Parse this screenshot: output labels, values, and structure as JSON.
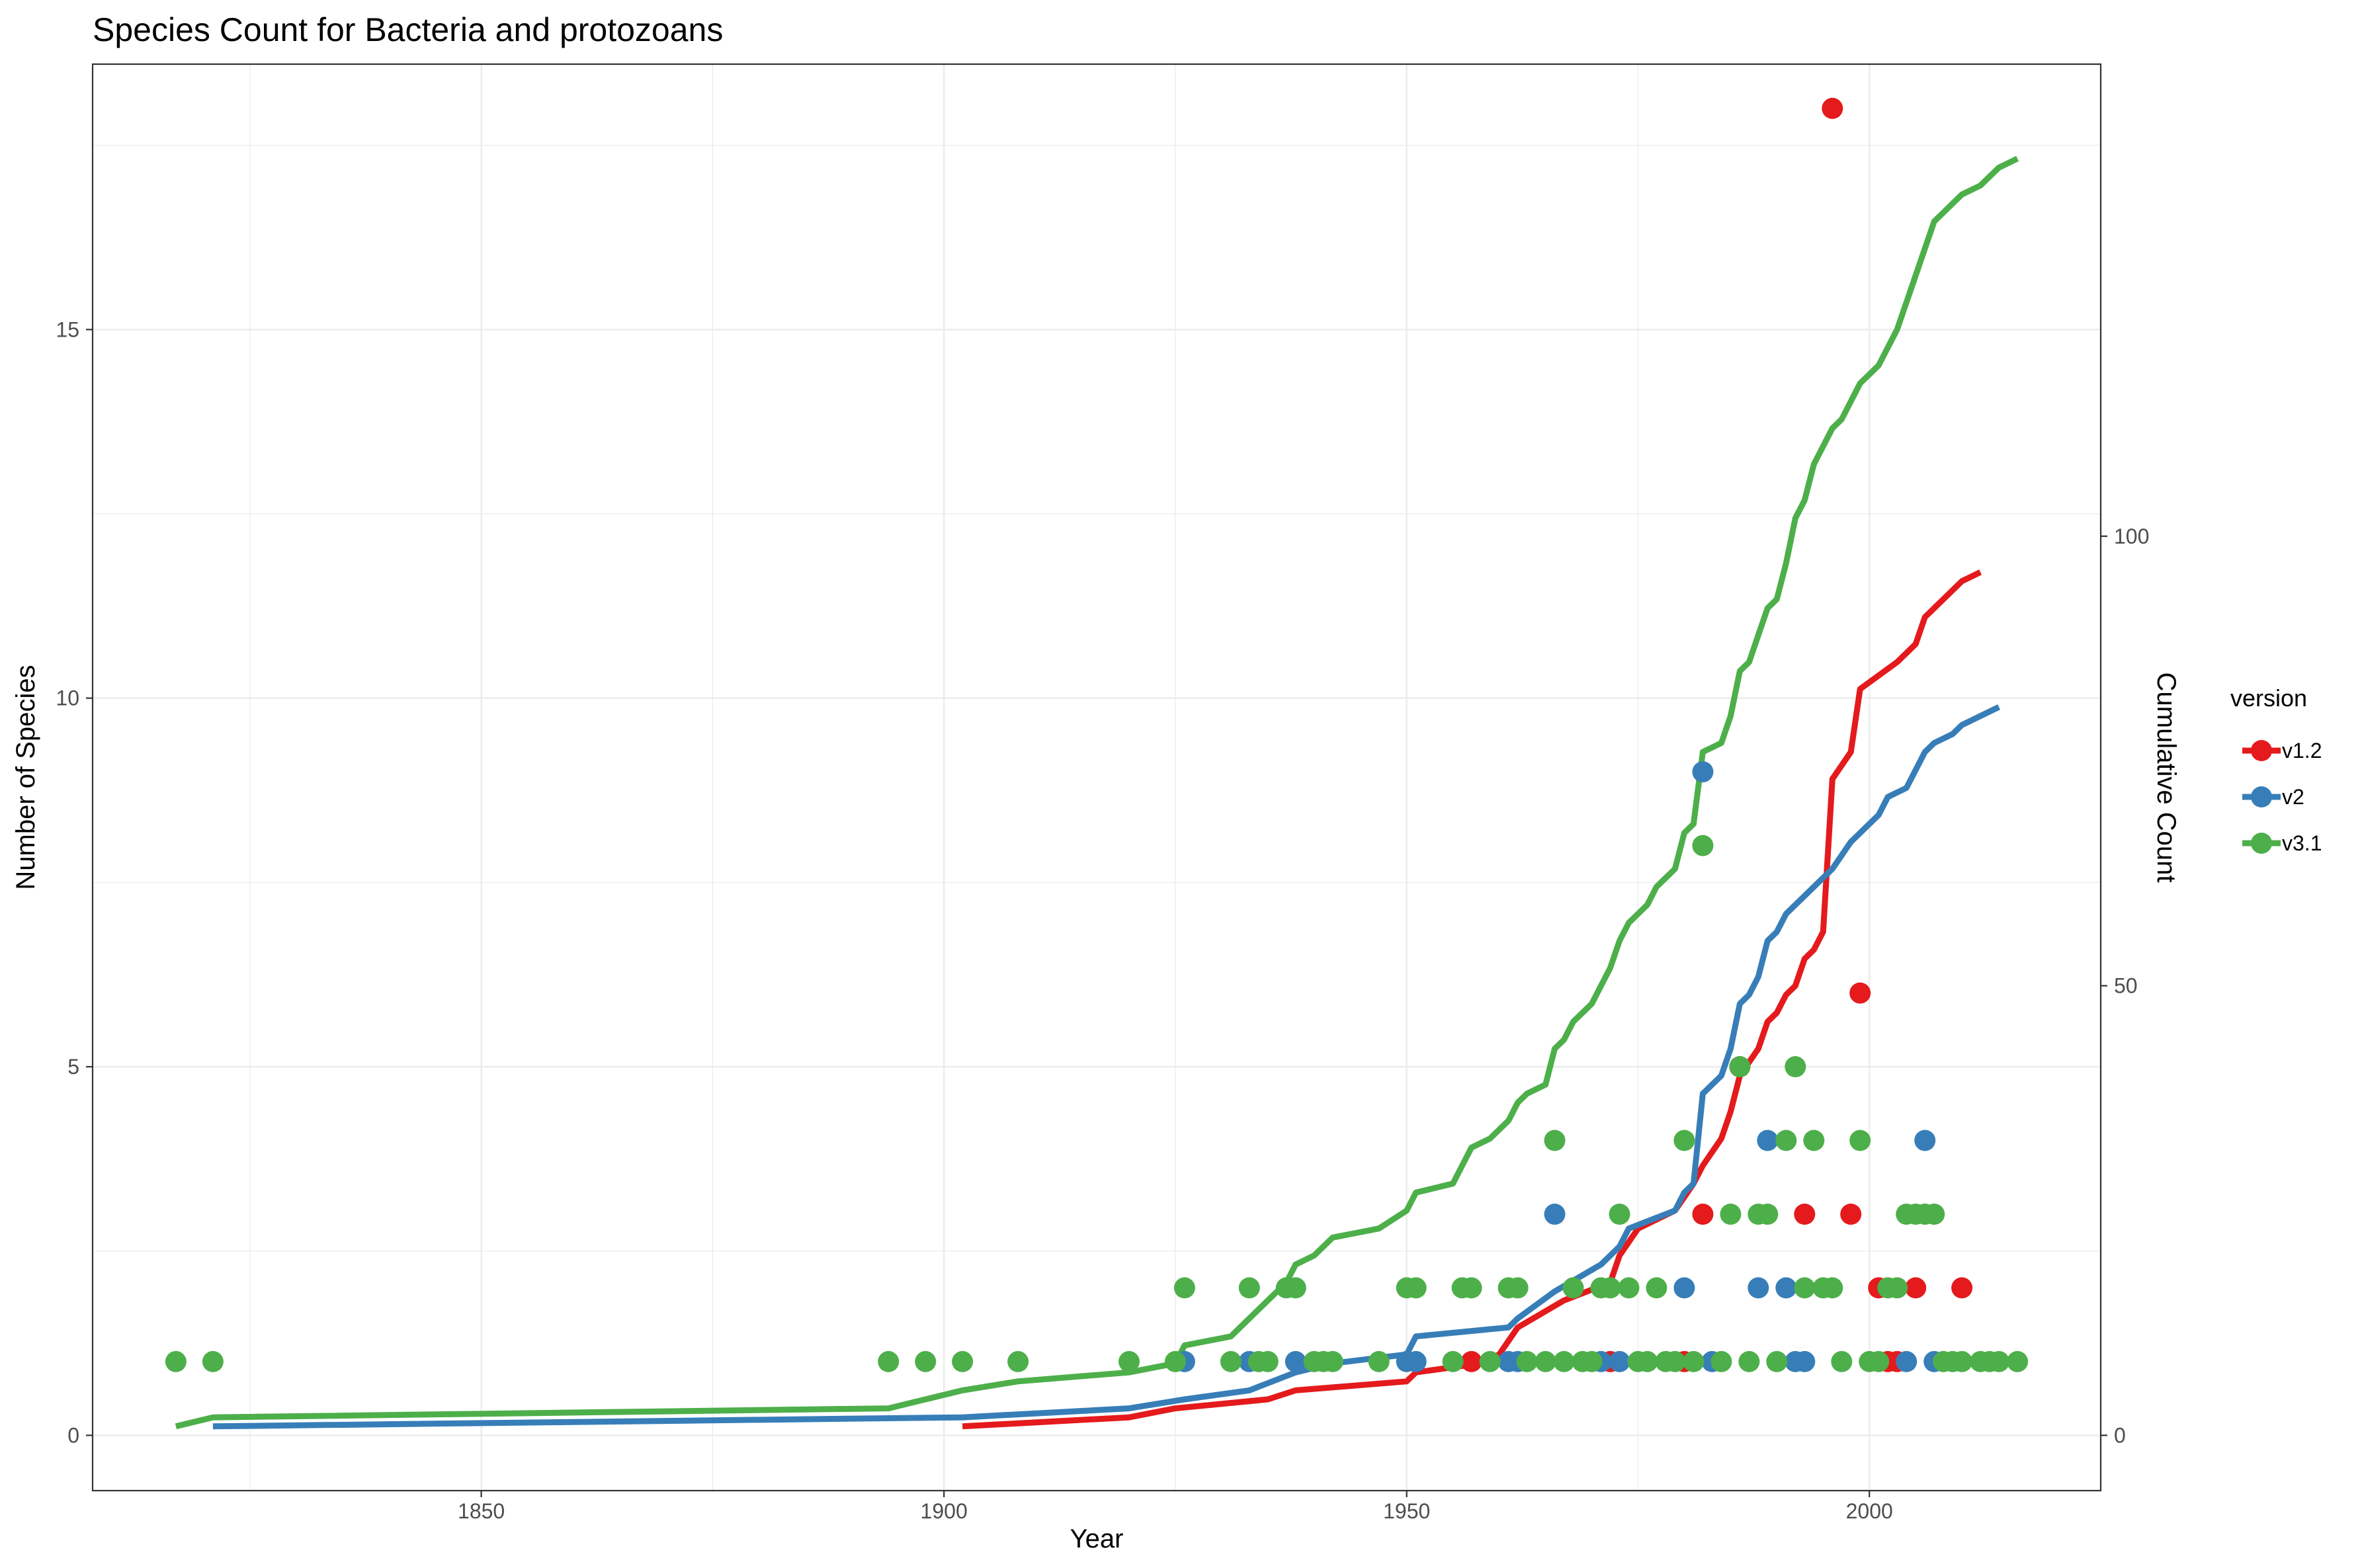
{
  "chart_data": {
    "type": "line",
    "title": "Species Count for Bacteria and protozoans",
    "xlabel": "Year",
    "ylabel": "Number of Species",
    "y2label": "Cumulative Count",
    "xlim": [
      1808,
      2025
    ],
    "ylim": [
      -0.75,
      18.6
    ],
    "y2lim": [
      -6.15,
      152.5
    ],
    "x_ticks": [
      1850,
      1900,
      1950,
      2000
    ],
    "y_ticks": [
      0,
      5,
      10,
      15
    ],
    "y2_ticks": [
      0,
      50,
      100
    ],
    "grid": true,
    "legend": {
      "title": "version",
      "position": "right",
      "entries": [
        "v1.2",
        "v2",
        "v3.1"
      ]
    },
    "colors": {
      "v1.2": "#e41a1c",
      "v2": "#377eb8",
      "v3.1": "#4daf4a"
    },
    "series": [
      {
        "name": "v1.2",
        "points": [
          {
            "x": 1957,
            "y": 1
          },
          {
            "x": 1972,
            "y": 1
          },
          {
            "x": 1980,
            "y": 1
          },
          {
            "x": 1982,
            "y": 3
          },
          {
            "x": 1986,
            "y": 5
          },
          {
            "x": 1993,
            "y": 3
          },
          {
            "x": 1996,
            "y": 18
          },
          {
            "x": 1998,
            "y": 3
          },
          {
            "x": 1999,
            "y": 6
          },
          {
            "x": 2001,
            "y": 2
          },
          {
            "x": 2002,
            "y": 1
          },
          {
            "x": 2003,
            "y": 1
          },
          {
            "x": 2005,
            "y": 2
          },
          {
            "x": 2010,
            "y": 2
          }
        ],
        "cumulative": [
          [
            1902,
            1
          ],
          [
            1920,
            2
          ],
          [
            1925,
            3
          ],
          [
            1935,
            4
          ],
          [
            1938,
            5
          ],
          [
            1950,
            6
          ],
          [
            1951,
            7
          ],
          [
            1958,
            8
          ],
          [
            1960,
            9
          ],
          [
            1962,
            12
          ],
          [
            1967,
            15
          ],
          [
            1972,
            17
          ],
          [
            1973,
            20
          ],
          [
            1975,
            23
          ],
          [
            1979,
            25
          ],
          [
            1981,
            28
          ],
          [
            1982,
            30
          ],
          [
            1984,
            33
          ],
          [
            1985,
            36
          ],
          [
            1986,
            40
          ],
          [
            1988,
            43
          ],
          [
            1989,
            46
          ],
          [
            1990,
            47
          ],
          [
            1991,
            49
          ],
          [
            1992,
            50
          ],
          [
            1993,
            53
          ],
          [
            1994,
            54
          ],
          [
            1995,
            56
          ],
          [
            1996,
            73
          ],
          [
            1998,
            76
          ],
          [
            1999,
            83
          ],
          [
            2003,
            86
          ],
          [
            2005,
            88
          ],
          [
            2006,
            91
          ],
          [
            2008,
            93
          ],
          [
            2010,
            95
          ],
          [
            2012,
            96
          ]
        ]
      },
      {
        "name": "v2",
        "points": [
          {
            "x": 1926,
            "y": 1
          },
          {
            "x": 1933,
            "y": 1
          },
          {
            "x": 1938,
            "y": 1
          },
          {
            "x": 1950,
            "y": 1
          },
          {
            "x": 1951,
            "y": 1
          },
          {
            "x": 1961,
            "y": 1
          },
          {
            "x": 1962,
            "y": 1
          },
          {
            "x": 1966,
            "y": 3
          },
          {
            "x": 1971,
            "y": 1
          },
          {
            "x": 1973,
            "y": 1
          },
          {
            "x": 1980,
            "y": 2
          },
          {
            "x": 1982,
            "y": 9
          },
          {
            "x": 1983,
            "y": 1
          },
          {
            "x": 1988,
            "y": 2
          },
          {
            "x": 1989,
            "y": 4
          },
          {
            "x": 1991,
            "y": 2
          },
          {
            "x": 1992,
            "y": 1
          },
          {
            "x": 1993,
            "y": 1
          },
          {
            "x": 2004,
            "y": 1
          },
          {
            "x": 2006,
            "y": 4
          },
          {
            "x": 2007,
            "y": 1
          }
        ],
        "cumulative": [
          [
            1821,
            1
          ],
          [
            1902,
            2
          ],
          [
            1920,
            3
          ],
          [
            1926,
            4
          ],
          [
            1933,
            5
          ],
          [
            1938,
            7
          ],
          [
            1942,
            8
          ],
          [
            1950,
            9
          ],
          [
            1951,
            11
          ],
          [
            1961,
            12
          ],
          [
            1962,
            13
          ],
          [
            1966,
            16
          ],
          [
            1971,
            19
          ],
          [
            1973,
            21
          ],
          [
            1974,
            23
          ],
          [
            1979,
            25
          ],
          [
            1980,
            27
          ],
          [
            1981,
            28
          ],
          [
            1982,
            38
          ],
          [
            1984,
            40
          ],
          [
            1985,
            43
          ],
          [
            1986,
            48
          ],
          [
            1987,
            49
          ],
          [
            1988,
            51
          ],
          [
            1989,
            55
          ],
          [
            1990,
            56
          ],
          [
            1991,
            58
          ],
          [
            1993,
            60
          ],
          [
            1995,
            62
          ],
          [
            1996,
            63
          ],
          [
            1998,
            66
          ],
          [
            2000,
            68
          ],
          [
            2001,
            69
          ],
          [
            2002,
            71
          ],
          [
            2004,
            72
          ],
          [
            2005,
            74
          ],
          [
            2006,
            76
          ],
          [
            2007,
            77
          ],
          [
            2009,
            78
          ],
          [
            2010,
            79
          ],
          [
            2014,
            81
          ]
        ]
      },
      {
        "name": "v3.1",
        "points": [
          {
            "x": 1817,
            "y": 1
          },
          {
            "x": 1821,
            "y": 1
          },
          {
            "x": 1894,
            "y": 1
          },
          {
            "x": 1898,
            "y": 1
          },
          {
            "x": 1902,
            "y": 1
          },
          {
            "x": 1908,
            "y": 1
          },
          {
            "x": 1920,
            "y": 1
          },
          {
            "x": 1925,
            "y": 1
          },
          {
            "x": 1926,
            "y": 2
          },
          {
            "x": 1931,
            "y": 1
          },
          {
            "x": 1933,
            "y": 2
          },
          {
            "x": 1934,
            "y": 1
          },
          {
            "x": 1935,
            "y": 1
          },
          {
            "x": 1937,
            "y": 2
          },
          {
            "x": 1938,
            "y": 2
          },
          {
            "x": 1940,
            "y": 1
          },
          {
            "x": 1941,
            "y": 1
          },
          {
            "x": 1942,
            "y": 1
          },
          {
            "x": 1947,
            "y": 1
          },
          {
            "x": 1950,
            "y": 2
          },
          {
            "x": 1951,
            "y": 2
          },
          {
            "x": 1955,
            "y": 1
          },
          {
            "x": 1956,
            "y": 2
          },
          {
            "x": 1957,
            "y": 2
          },
          {
            "x": 1959,
            "y": 1
          },
          {
            "x": 1961,
            "y": 2
          },
          {
            "x": 1962,
            "y": 2
          },
          {
            "x": 1963,
            "y": 1
          },
          {
            "x": 1965,
            "y": 1
          },
          {
            "x": 1966,
            "y": 4
          },
          {
            "x": 1967,
            "y": 1
          },
          {
            "x": 1968,
            "y": 2
          },
          {
            "x": 1969,
            "y": 1
          },
          {
            "x": 1970,
            "y": 1
          },
          {
            "x": 1971,
            "y": 2
          },
          {
            "x": 1972,
            "y": 2
          },
          {
            "x": 1973,
            "y": 3
          },
          {
            "x": 1974,
            "y": 2
          },
          {
            "x": 1975,
            "y": 1
          },
          {
            "x": 1976,
            "y": 1
          },
          {
            "x": 1977,
            "y": 2
          },
          {
            "x": 1978,
            "y": 1
          },
          {
            "x": 1979,
            "y": 1
          },
          {
            "x": 1980,
            "y": 4
          },
          {
            "x": 1981,
            "y": 1
          },
          {
            "x": 1982,
            "y": 8
          },
          {
            "x": 1984,
            "y": 1
          },
          {
            "x": 1985,
            "y": 3
          },
          {
            "x": 1986,
            "y": 5
          },
          {
            "x": 1987,
            "y": 1
          },
          {
            "x": 1988,
            "y": 3
          },
          {
            "x": 1989,
            "y": 3
          },
          {
            "x": 1990,
            "y": 1
          },
          {
            "x": 1991,
            "y": 4
          },
          {
            "x": 1992,
            "y": 5
          },
          {
            "x": 1993,
            "y": 2
          },
          {
            "x": 1994,
            "y": 4
          },
          {
            "x": 1995,
            "y": 2
          },
          {
            "x": 1996,
            "y": 2
          },
          {
            "x": 1997,
            "y": 1
          },
          {
            "x": 1999,
            "y": 4
          },
          {
            "x": 2000,
            "y": 1
          },
          {
            "x": 2001,
            "y": 1
          },
          {
            "x": 2002,
            "y": 2
          },
          {
            "x": 2003,
            "y": 2
          },
          {
            "x": 2004,
            "y": 3
          },
          {
            "x": 2005,
            "y": 3
          },
          {
            "x": 2006,
            "y": 3
          },
          {
            "x": 2007,
            "y": 3
          },
          {
            "x": 2008,
            "y": 1
          },
          {
            "x": 2009,
            "y": 1
          },
          {
            "x": 2010,
            "y": 1
          },
          {
            "x": 2012,
            "y": 1
          },
          {
            "x": 2013,
            "y": 1
          },
          {
            "x": 2014,
            "y": 1
          },
          {
            "x": 2016,
            "y": 1
          }
        ],
        "cumulative": [
          [
            1817,
            1
          ],
          [
            1821,
            2
          ],
          [
            1894,
            3
          ],
          [
            1898,
            4
          ],
          [
            1902,
            5
          ],
          [
            1908,
            6
          ],
          [
            1920,
            7
          ],
          [
            1925,
            8
          ],
          [
            1926,
            10
          ],
          [
            1931,
            11
          ],
          [
            1933,
            13
          ],
          [
            1934,
            14
          ],
          [
            1935,
            15
          ],
          [
            1937,
            17
          ],
          [
            1938,
            19
          ],
          [
            1940,
            20
          ],
          [
            1941,
            21
          ],
          [
            1942,
            22
          ],
          [
            1947,
            23
          ],
          [
            1950,
            25
          ],
          [
            1951,
            27
          ],
          [
            1955,
            28
          ],
          [
            1956,
            30
          ],
          [
            1957,
            32
          ],
          [
            1959,
            33
          ],
          [
            1961,
            35
          ],
          [
            1962,
            37
          ],
          [
            1963,
            38
          ],
          [
            1965,
            39
          ],
          [
            1966,
            43
          ],
          [
            1967,
            44
          ],
          [
            1968,
            46
          ],
          [
            1969,
            47
          ],
          [
            1970,
            48
          ],
          [
            1971,
            50
          ],
          [
            1972,
            52
          ],
          [
            1973,
            55
          ],
          [
            1974,
            57
          ],
          [
            1975,
            58
          ],
          [
            1976,
            59
          ],
          [
            1977,
            61
          ],
          [
            1978,
            62
          ],
          [
            1979,
            63
          ],
          [
            1980,
            67
          ],
          [
            1981,
            68
          ],
          [
            1982,
            76
          ],
          [
            1984,
            77
          ],
          [
            1985,
            80
          ],
          [
            1986,
            85
          ],
          [
            1987,
            86
          ],
          [
            1988,
            89
          ],
          [
            1989,
            92
          ],
          [
            1990,
            93
          ],
          [
            1991,
            97
          ],
          [
            1992,
            102
          ],
          [
            1993,
            104
          ],
          [
            1994,
            108
          ],
          [
            1995,
            110
          ],
          [
            1996,
            112
          ],
          [
            1997,
            113
          ],
          [
            1999,
            117
          ],
          [
            2000,
            118
          ],
          [
            2001,
            119
          ],
          [
            2002,
            121
          ],
          [
            2003,
            123
          ],
          [
            2004,
            126
          ],
          [
            2005,
            129
          ],
          [
            2006,
            132
          ],
          [
            2007,
            135
          ],
          [
            2008,
            136
          ],
          [
            2009,
            137
          ],
          [
            2010,
            138
          ],
          [
            2012,
            139
          ],
          [
            2013,
            140
          ],
          [
            2014,
            141
          ],
          [
            2016,
            142
          ]
        ]
      }
    ]
  }
}
